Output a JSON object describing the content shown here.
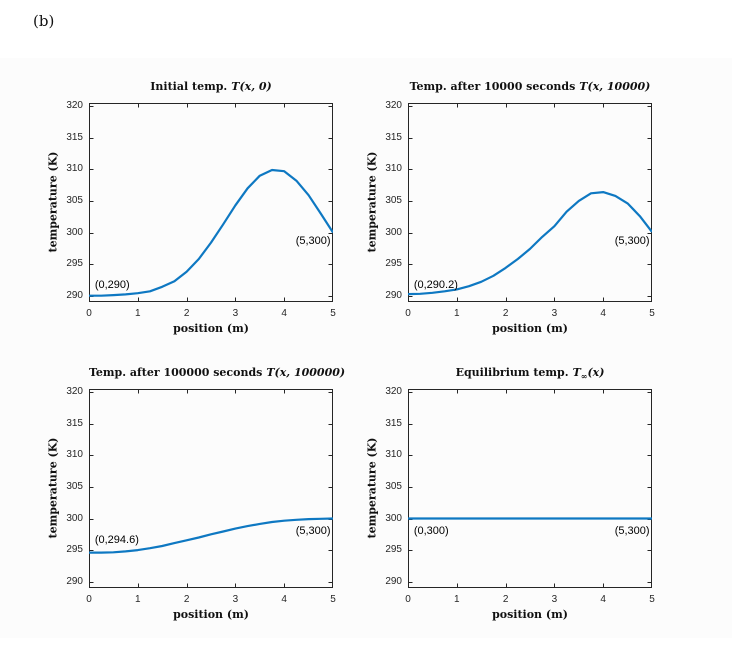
{
  "page": {
    "corner_label": "(b)",
    "figure_bg": "#fcfcfc",
    "axis_color": "#262626"
  },
  "chart_data": [
    {
      "type": "line",
      "title_bold": "Initial temp.",
      "math_pre": "T",
      "math_sub": "",
      "math_post": "(x, 0)",
      "xlabel": "position (m)",
      "ylabel": "temperature (K)",
      "xlim": [
        0,
        5
      ],
      "ylim": [
        289,
        320.5
      ],
      "xticks": [
        0,
        1,
        2,
        3,
        4,
        5
      ],
      "yticks": [
        290,
        295,
        300,
        305,
        310,
        315,
        320
      ],
      "grid": false,
      "legend": "none",
      "line_color": "#0e78c2",
      "annotations": [
        {
          "text": "(0,290)",
          "x": 0.12,
          "y": 291.6,
          "align": "left"
        },
        {
          "text": "(5,300)",
          "x": 4.95,
          "y": 298.5,
          "align": "right"
        }
      ],
      "series": [
        {
          "name": "T(x,0)",
          "x": [
            0,
            0.25,
            0.5,
            0.75,
            1,
            1.25,
            1.5,
            1.75,
            2,
            2.25,
            2.5,
            2.75,
            3,
            3.25,
            3.5,
            3.75,
            4,
            4.25,
            4.5,
            4.75,
            5
          ],
          "y": [
            290.0,
            290.0,
            290.1,
            290.2,
            290.4,
            290.7,
            291.4,
            292.3,
            293.8,
            295.8,
            298.4,
            301.3,
            304.3,
            307.0,
            309.0,
            309.9,
            309.7,
            308.2,
            305.9,
            303.0,
            300.0
          ]
        }
      ]
    },
    {
      "type": "line",
      "title_bold": "Temp. after 10000 seconds",
      "math_pre": "T",
      "math_sub": "",
      "math_post": "(x, 10000)",
      "xlabel": "position (m)",
      "ylabel": "temperature (K)",
      "xlim": [
        0,
        5
      ],
      "ylim": [
        289,
        320.5
      ],
      "xticks": [
        0,
        1,
        2,
        3,
        4,
        5
      ],
      "yticks": [
        290,
        295,
        300,
        305,
        310,
        315,
        320
      ],
      "grid": false,
      "legend": "none",
      "line_color": "#0e78c2",
      "annotations": [
        {
          "text": "(0,290.2)",
          "x": 0.12,
          "y": 291.6,
          "align": "left"
        },
        {
          "text": "(5,300)",
          "x": 4.95,
          "y": 298.5,
          "align": "right"
        }
      ],
      "series": [
        {
          "name": "T(x,10000)",
          "x": [
            0,
            0.25,
            0.5,
            0.75,
            1,
            1.25,
            1.5,
            1.75,
            2,
            2.25,
            2.5,
            2.75,
            3,
            3.25,
            3.5,
            3.75,
            4,
            4.25,
            4.5,
            4.75,
            5
          ],
          "y": [
            290.25,
            290.3,
            290.45,
            290.7,
            291.0,
            291.5,
            292.2,
            293.15,
            294.4,
            295.8,
            297.4,
            299.3,
            301.0,
            303.3,
            305.0,
            306.2,
            306.4,
            305.8,
            304.6,
            302.6,
            300.1
          ]
        }
      ]
    },
    {
      "type": "line",
      "title_bold": "Temp. after 100000 seconds",
      "math_pre": "T",
      "math_sub": "",
      "math_post": "(x, 100000)",
      "xlabel": "position (m)",
      "ylabel": "temperature (K)",
      "xlim": [
        0,
        5
      ],
      "ylim": [
        289,
        320.5
      ],
      "xticks": [
        0,
        1,
        2,
        3,
        4,
        5
      ],
      "yticks": [
        290,
        295,
        300,
        305,
        310,
        315,
        320
      ],
      "grid": false,
      "legend": "none",
      "line_color": "#0e78c2",
      "annotations": [
        {
          "text": "(0,294.6)",
          "x": 0.12,
          "y": 296.5,
          "align": "left"
        },
        {
          "text": "(5,300)",
          "x": 4.95,
          "y": 297.9,
          "align": "right"
        }
      ],
      "series": [
        {
          "name": "T(x,100000)",
          "x": [
            0,
            0.25,
            0.5,
            0.75,
            1,
            1.25,
            1.5,
            1.75,
            2,
            2.25,
            2.5,
            2.75,
            3,
            3.25,
            3.5,
            3.75,
            4,
            4.25,
            4.5,
            4.75,
            5
          ],
          "y": [
            294.6,
            294.6,
            294.65,
            294.8,
            295.0,
            295.3,
            295.65,
            296.1,
            296.55,
            297.0,
            297.5,
            297.95,
            298.4,
            298.8,
            299.15,
            299.45,
            299.65,
            299.8,
            299.9,
            299.95,
            300.0
          ]
        }
      ]
    },
    {
      "type": "line",
      "title_bold": "Equilibrium temp.",
      "math_pre": "T",
      "math_sub": "∞",
      "math_post": "(x)",
      "xlabel": "position (m)",
      "ylabel": "temperature (K)",
      "xlim": [
        0,
        5
      ],
      "ylim": [
        289,
        320.5
      ],
      "xticks": [
        0,
        1,
        2,
        3,
        4,
        5
      ],
      "yticks": [
        290,
        295,
        300,
        305,
        310,
        315,
        320
      ],
      "grid": false,
      "legend": "none",
      "line_color": "#0e78c2",
      "annotations": [
        {
          "text": "(0,300)",
          "x": 0.12,
          "y": 297.9,
          "align": "left"
        },
        {
          "text": "(5,300)",
          "x": 4.95,
          "y": 297.9,
          "align": "right"
        }
      ],
      "series": [
        {
          "name": "T_inf(x)",
          "x": [
            0,
            5
          ],
          "y": [
            300,
            300
          ]
        }
      ]
    }
  ]
}
